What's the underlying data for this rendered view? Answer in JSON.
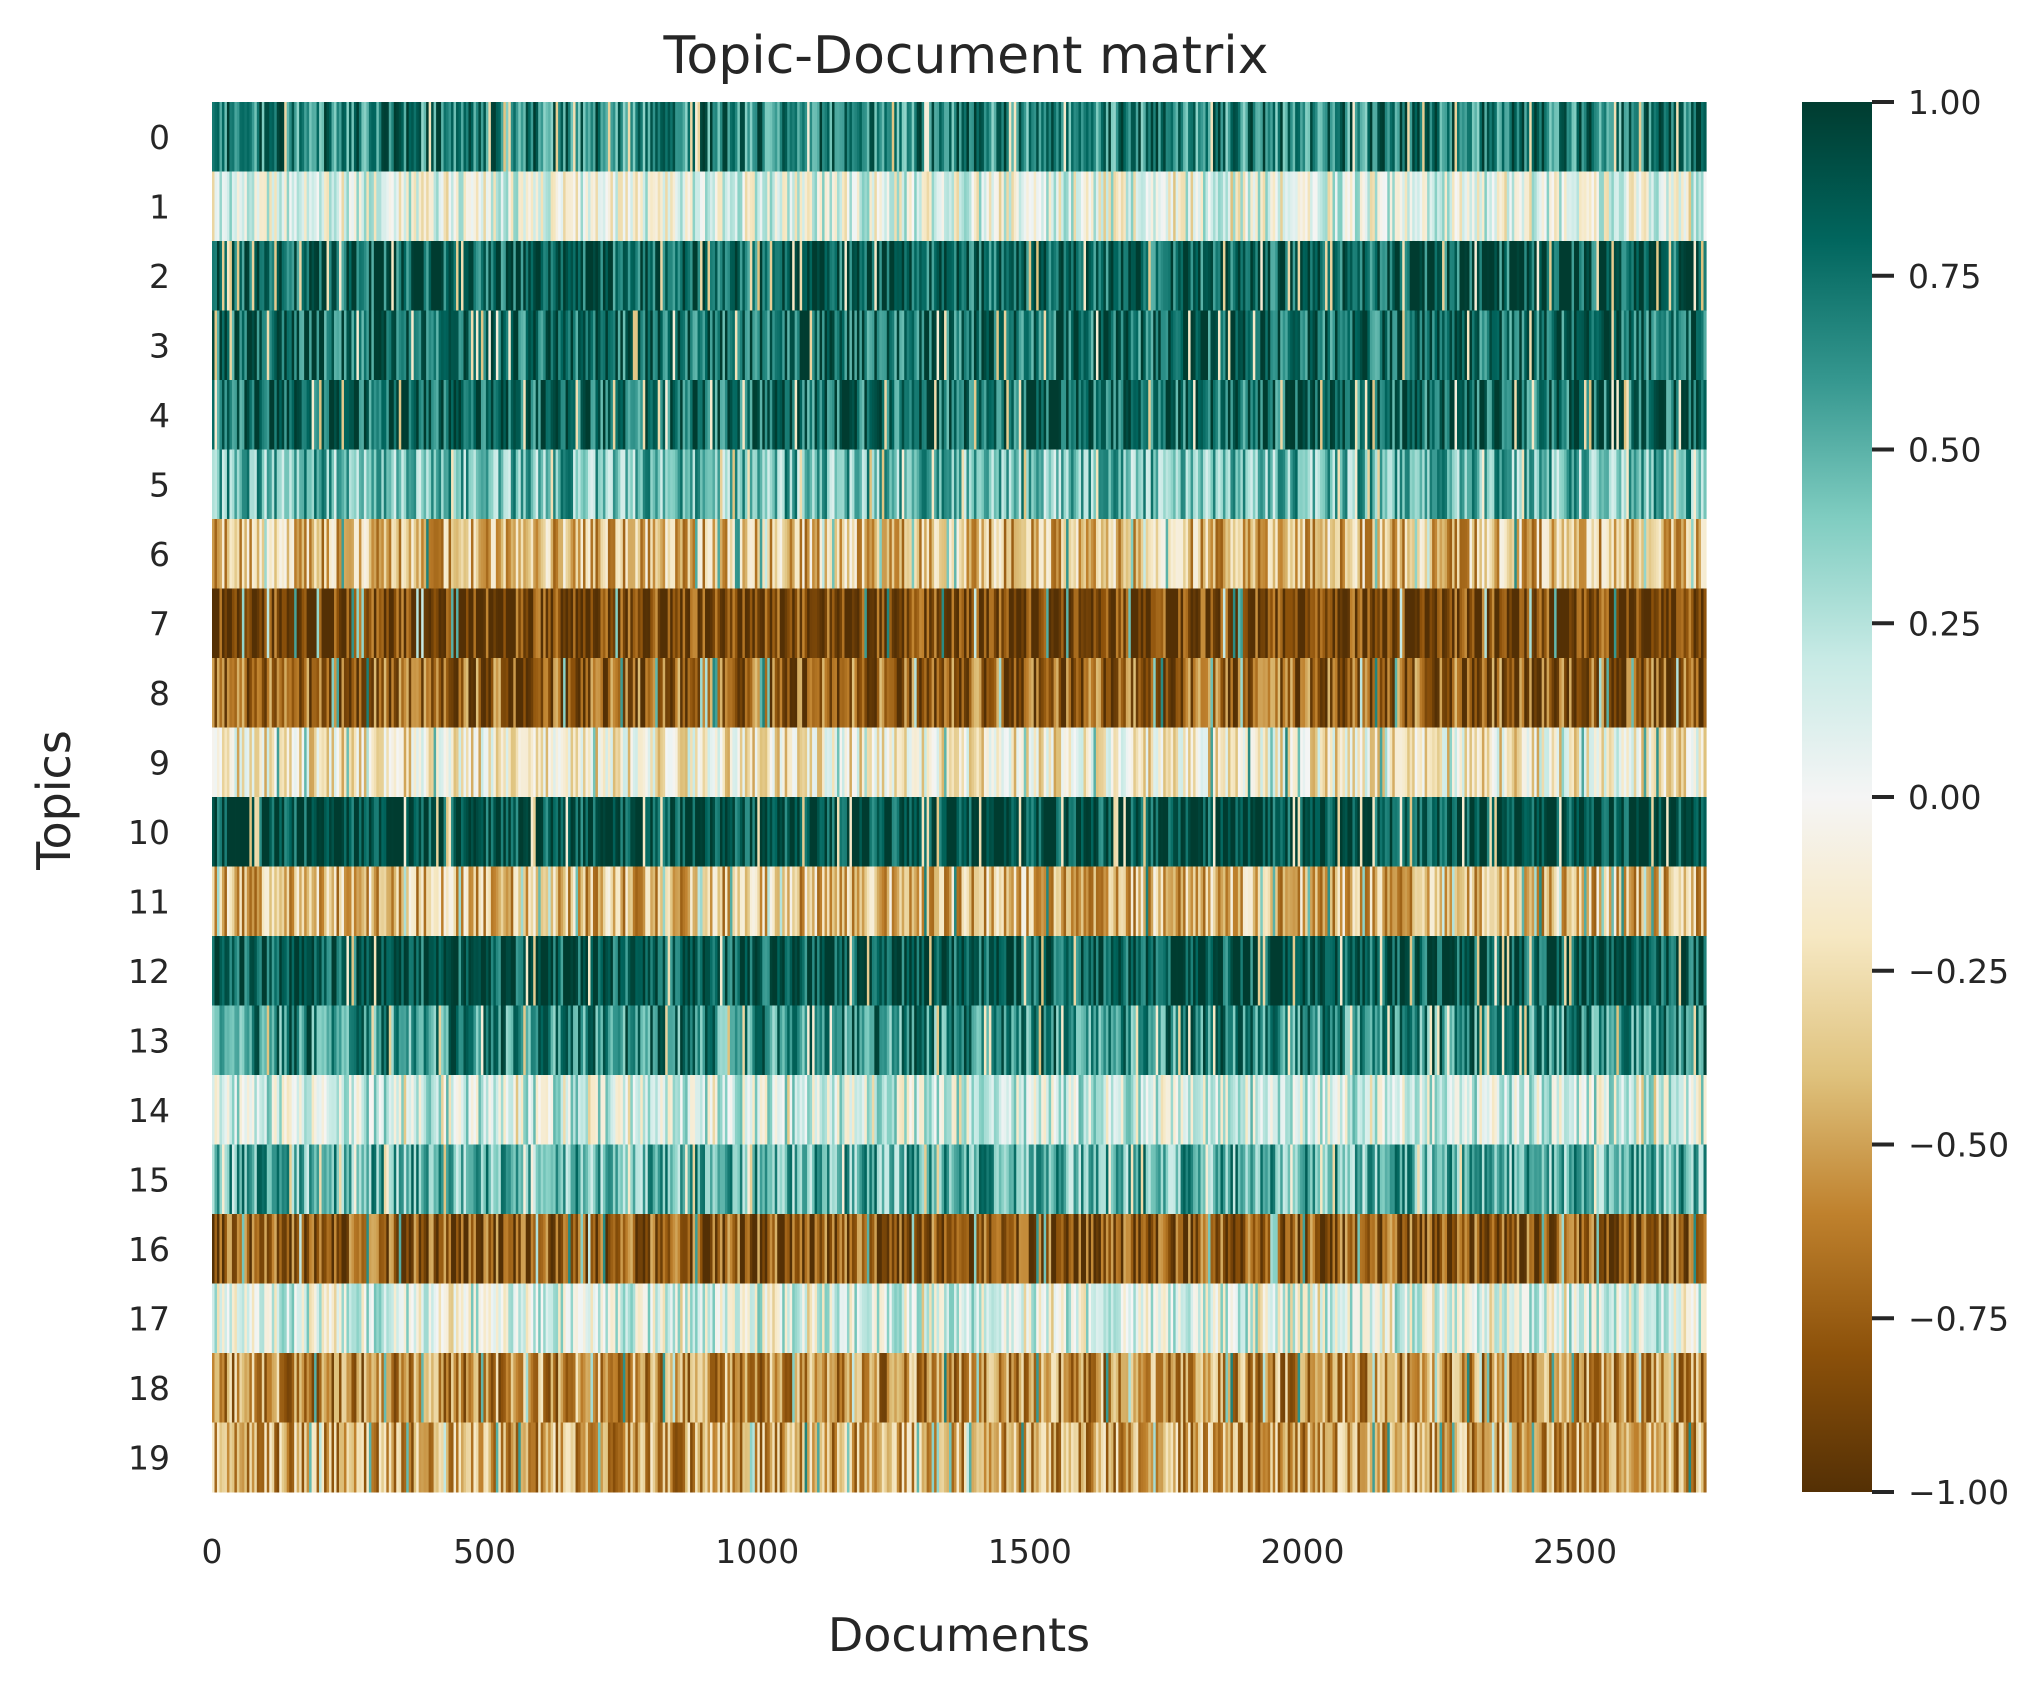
{
  "chart_data": {
    "type": "heatmap",
    "title": "Topic-Document matrix",
    "xlabel": "Documents",
    "ylabel": "Topics",
    "rows": [
      "0",
      "1",
      "2",
      "3",
      "4",
      "5",
      "6",
      "7",
      "8",
      "9",
      "10",
      "11",
      "12",
      "13",
      "14",
      "15",
      "16",
      "17",
      "18",
      "19"
    ],
    "n_documents": 2740,
    "xlim": [
      0,
      2740
    ],
    "x_ticks": [
      {
        "value": 0,
        "label": "0"
      },
      {
        "value": 500,
        "label": "500"
      },
      {
        "value": 1000,
        "label": "1000"
      },
      {
        "value": 1500,
        "label": "1500"
      },
      {
        "value": 2000,
        "label": "2000"
      },
      {
        "value": 2500,
        "label": "2500"
      }
    ],
    "row_mean_values": [
      0.7,
      0.05,
      0.85,
      0.8,
      0.8,
      0.45,
      -0.4,
      -0.9,
      -0.75,
      -0.15,
      0.95,
      -0.4,
      0.9,
      0.65,
      0.15,
      0.5,
      -0.8,
      0.1,
      -0.55,
      -0.5
    ],
    "colorbar": {
      "colormap": "BrBG",
      "vmin": -1.0,
      "vmax": 1.0,
      "ticks": [
        {
          "value": 1.0,
          "label": "1.00"
        },
        {
          "value": 0.75,
          "label": "0.75"
        },
        {
          "value": 0.5,
          "label": "0.50"
        },
        {
          "value": 0.25,
          "label": "0.25"
        },
        {
          "value": 0.0,
          "label": "0.00"
        },
        {
          "value": -0.25,
          "label": "−0.25"
        },
        {
          "value": -0.5,
          "label": "−0.50"
        },
        {
          "value": -0.75,
          "label": "−0.75"
        },
        {
          "value": -1.0,
          "label": "−1.00"
        }
      ],
      "color_stops": [
        "#543005",
        "#8c510a",
        "#bf812d",
        "#dfc27d",
        "#f6e8c3",
        "#f5f5f5",
        "#c7eae5",
        "#80cdc1",
        "#35978f",
        "#01665e",
        "#003c30"
      ]
    },
    "grid": false,
    "legend": "colorbar-right"
  }
}
